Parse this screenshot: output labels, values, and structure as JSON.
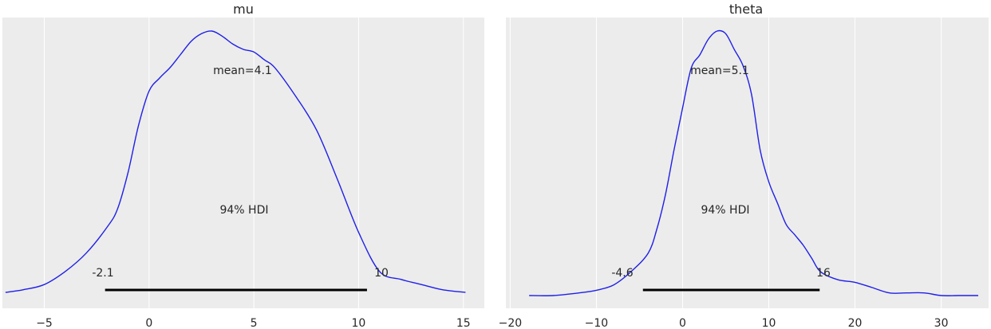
{
  "chart_data": [
    {
      "type": "line",
      "title": "mu",
      "xlabel": "",
      "ylabel": "",
      "xlim": [
        -7.0,
        16.0
      ],
      "ylim": [
        0,
        1.0
      ],
      "xticks": [
        -5,
        0,
        5,
        10,
        15
      ],
      "xtick_labels": [
        "−5",
        "0",
        "5",
        "10",
        "15"
      ],
      "grid": true,
      "series": [
        {
          "x": [
            -6.85,
            -6.0,
            -5.0,
            -4.0,
            -3.0,
            -2.0,
            -1.5,
            -1.0,
            -0.5,
            0.0,
            0.5,
            1.0,
            1.5,
            2.0,
            2.5,
            3.0,
            3.5,
            4.0,
            4.5,
            5.0,
            5.5,
            6.0,
            7.0,
            8.0,
            9.0,
            10.0,
            11.0,
            12.0,
            13.0,
            14.0,
            15.1
          ],
          "y": [
            0.0,
            0.01,
            0.03,
            0.08,
            0.15,
            0.25,
            0.32,
            0.46,
            0.64,
            0.77,
            0.82,
            0.86,
            0.91,
            0.96,
            0.99,
            1.0,
            0.98,
            0.95,
            0.93,
            0.92,
            0.89,
            0.86,
            0.75,
            0.62,
            0.43,
            0.23,
            0.08,
            0.05,
            0.03,
            0.01,
            0.0
          ]
        }
      ],
      "annotations": {
        "mean": "mean=4.1",
        "hdi_label": "94% HDI",
        "hdi_low": "-2.1",
        "hdi_high": "10"
      },
      "hdi": [
        -2.1,
        10.4
      ],
      "colors": {
        "line": "#1f1fe8",
        "hdi": "#000000",
        "background": "#ececec",
        "grid": "#ffffff"
      }
    },
    {
      "type": "line",
      "title": "theta",
      "xlabel": "",
      "ylabel": "",
      "xlim": [
        -20.5,
        35.5
      ],
      "ylim": [
        0,
        1.0
      ],
      "xticks": [
        -20,
        -10,
        0,
        10,
        20,
        30
      ],
      "xtick_labels": [
        "−20",
        "−10",
        "0",
        "10",
        "20",
        "30"
      ],
      "grid": true,
      "series": [
        {
          "x": [
            -17.8,
            -15.0,
            -12.0,
            -10.0,
            -8.0,
            -6.0,
            -4.0,
            -3.0,
            -2.0,
            -1.0,
            0.0,
            1.0,
            2.0,
            3.0,
            4.0,
            5.0,
            6.0,
            7.0,
            8.0,
            9.0,
            10.0,
            11.0,
            12.0,
            13.0,
            14.0,
            15.0,
            16.0,
            18.0,
            20.0,
            22.0,
            24.0,
            26.0,
            28.0,
            30.0,
            32.0,
            34.3
          ],
          "y": [
            0.0,
            0.0,
            0.01,
            0.02,
            0.04,
            0.09,
            0.16,
            0.25,
            0.38,
            0.55,
            0.71,
            0.86,
            0.91,
            0.97,
            1.0,
            0.99,
            0.93,
            0.87,
            0.76,
            0.55,
            0.43,
            0.35,
            0.27,
            0.23,
            0.19,
            0.14,
            0.09,
            0.06,
            0.05,
            0.03,
            0.01,
            0.01,
            0.01,
            0.0,
            0.0,
            0.0
          ]
        }
      ],
      "annotations": {
        "mean": "mean=5.1",
        "hdi_label": "94% HDI",
        "hdi_low": "-4.6",
        "hdi_high": "16"
      },
      "hdi": [
        -4.6,
        15.9
      ],
      "colors": {
        "line": "#1f1fe8",
        "hdi": "#000000",
        "background": "#ececec",
        "grid": "#ffffff"
      }
    }
  ]
}
